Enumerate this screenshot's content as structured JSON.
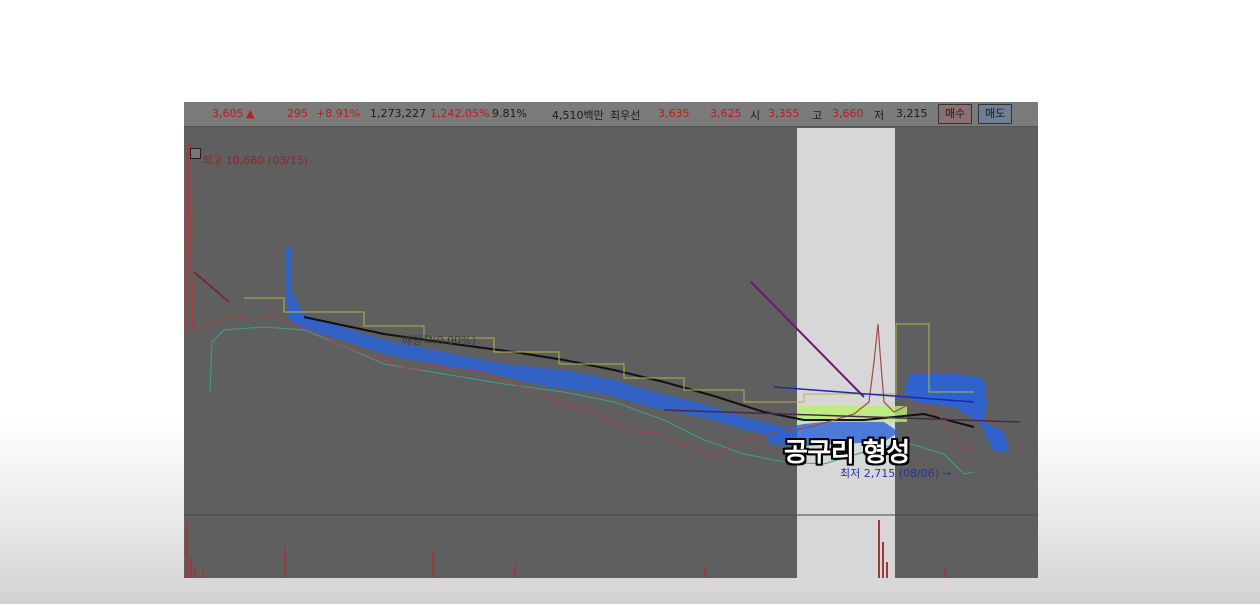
{
  "quote": {
    "price": "3,605",
    "direction_icon": "up-triangle-icon",
    "change": "295",
    "change_pct": "+8.91%",
    "volume": "1,273,227",
    "volume_ratio": "1,242.05%",
    "turnover": "9.81%",
    "amount": "4,510백만",
    "bid_label": "최우선",
    "ask_price": "3,635",
    "bid_price": "3,625",
    "open_label": "시",
    "open_value": "3,355",
    "high_label": "고",
    "high_value": "3,660",
    "low_label": "저",
    "low_value": "3,215"
  },
  "buttons": {
    "buy": "매수",
    "sell": "매도"
  },
  "annotations": {
    "high_marker": "최고 10,660 (03/15)",
    "dividend": "배당락(0.00%)",
    "low_marker": "최저 2,715 (08/06) →"
  },
  "caption": "공구리 형성",
  "colors": {
    "price_up": "#b81e1e",
    "cloud": "#2a63d6",
    "highlight": "#d7d7d7",
    "support_zone": "#b8f070"
  }
}
